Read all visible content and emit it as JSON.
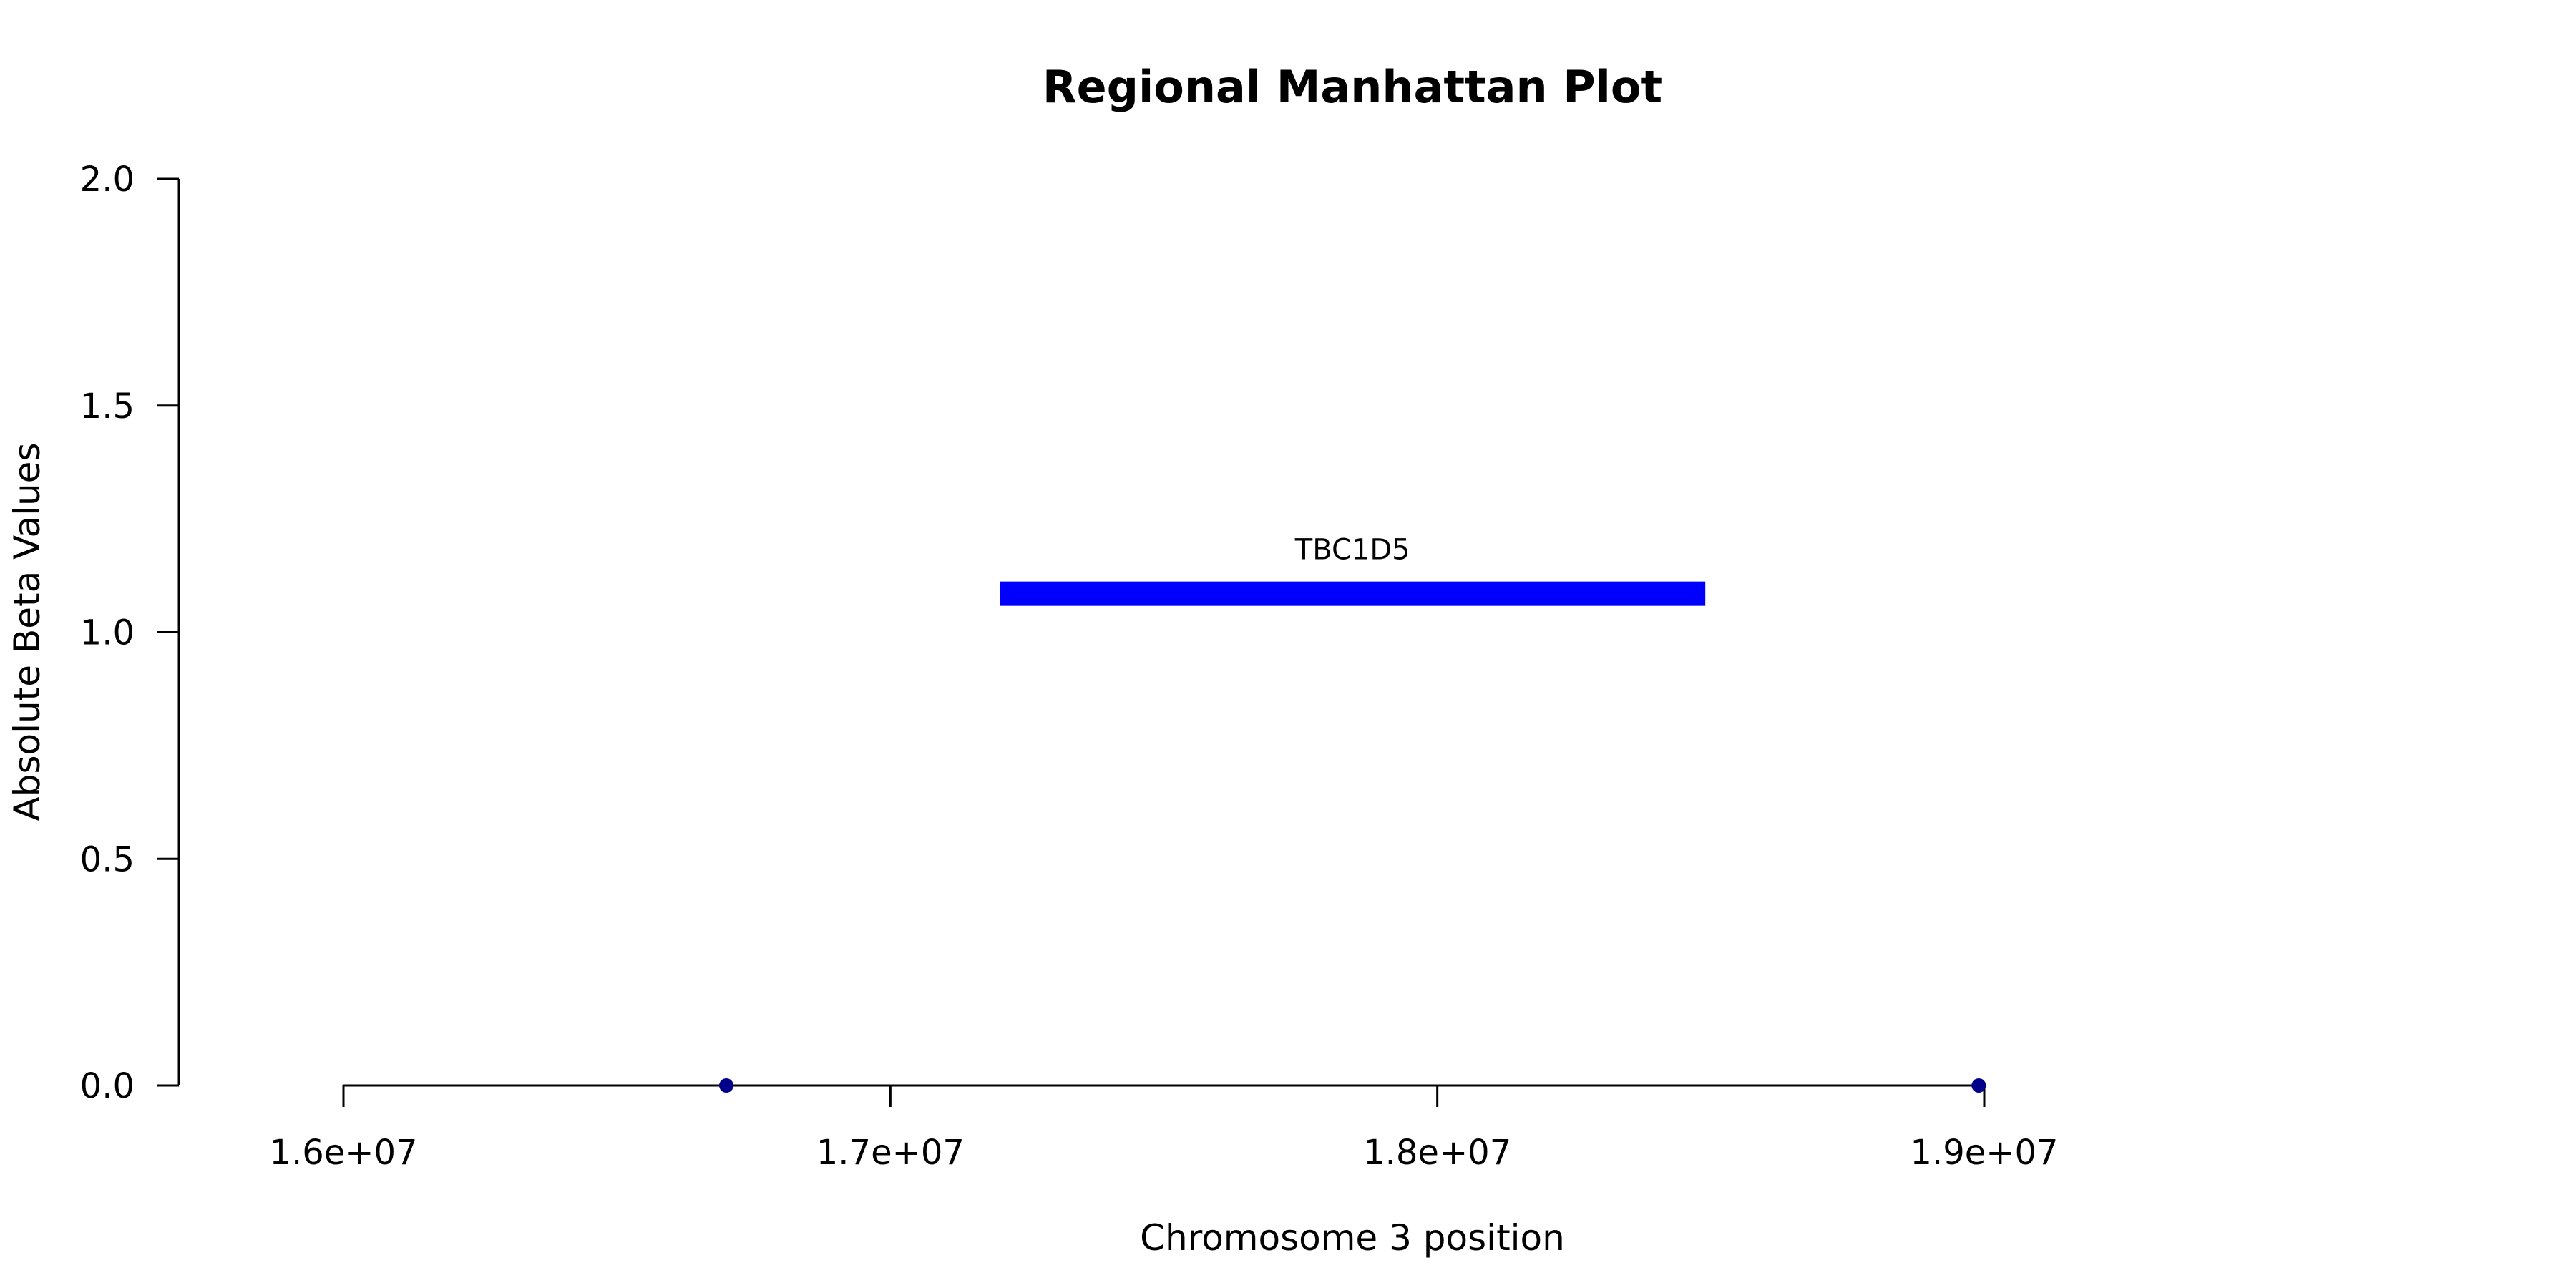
{
  "chart_data": {
    "type": "scatter",
    "title": "Regional Manhattan Plot",
    "xlabel": "Chromosome 3 position",
    "ylabel": "Absolute Beta Values",
    "xlim": [
      16000000,
      19000000
    ],
    "ylim": [
      0,
      2
    ],
    "x_ticks": [
      16000000,
      17000000,
      18000000,
      19000000
    ],
    "x_tick_labels": [
      "1.6e+07",
      "1.7e+07",
      "1.8e+07",
      "1.9e+07"
    ],
    "y_ticks": [
      0,
      0.5,
      1,
      1.5,
      2
    ],
    "y_tick_labels": [
      "0.0",
      "0.5",
      "1.0",
      "1.5",
      "2.0"
    ],
    "grid": false,
    "points": [
      {
        "x": 16700000,
        "y": 0
      },
      {
        "x": 18990000,
        "y": 0
      }
    ],
    "point_color": "#00008b",
    "genes": [
      {
        "name": "TBC1D5",
        "start": 17200000,
        "end": 18490000,
        "y": 1.085
      }
    ],
    "gene_color": "#0000ff"
  }
}
